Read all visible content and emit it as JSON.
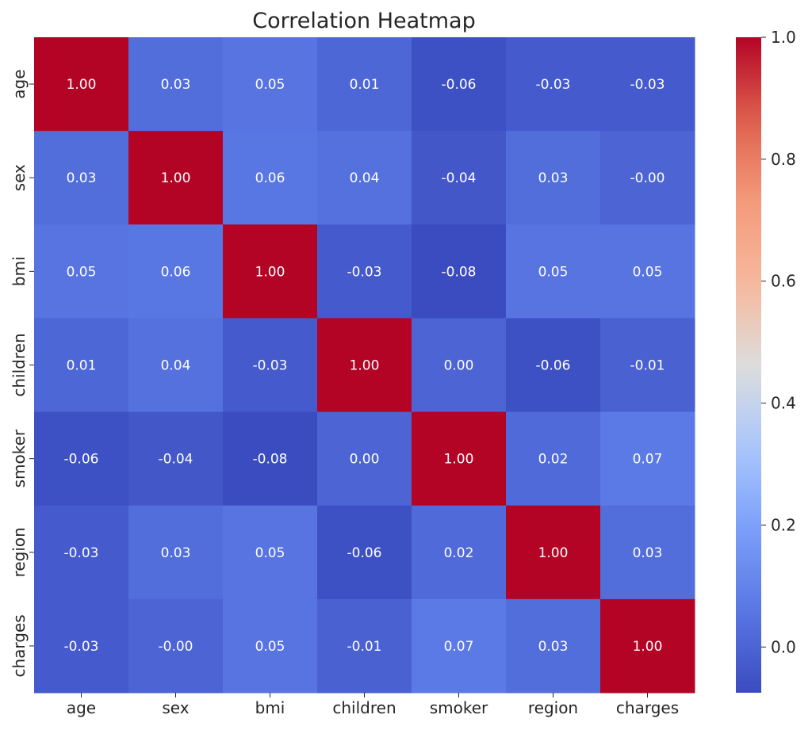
{
  "chart_data": {
    "type": "heatmap",
    "title": "Correlation Heatmap",
    "xlabel": "",
    "ylabel": "",
    "x_categories": [
      "age",
      "sex",
      "bmi",
      "children",
      "smoker",
      "region",
      "charges"
    ],
    "y_categories": [
      "age",
      "sex",
      "bmi",
      "children",
      "smoker",
      "region",
      "charges"
    ],
    "values": [
      [
        1.0,
        0.03,
        0.05,
        0.01,
        -0.06,
        -0.03,
        -0.03
      ],
      [
        0.03,
        1.0,
        0.06,
        0.04,
        -0.04,
        0.03,
        -0.0
      ],
      [
        0.05,
        0.06,
        1.0,
        -0.03,
        -0.08,
        0.05,
        0.05
      ],
      [
        0.01,
        0.04,
        -0.03,
        1.0,
        0.0,
        -0.06,
        -0.01
      ],
      [
        -0.06,
        -0.04,
        -0.08,
        0.0,
        1.0,
        0.02,
        0.07
      ],
      [
        -0.03,
        0.03,
        0.05,
        -0.06,
        0.02,
        1.0,
        0.03
      ],
      [
        -0.03,
        -0.0,
        0.05,
        -0.01,
        0.07,
        0.03,
        1.0
      ]
    ],
    "colormap": "coolwarm",
    "vmin": -0.075,
    "vmax": 1.0,
    "colorbar_ticks": [
      "0.0",
      "0.2",
      "0.4",
      "0.6",
      "0.8",
      "1.0"
    ],
    "colorbar_tick_values": [
      0.0,
      0.2,
      0.4,
      0.6,
      0.8,
      1.0
    ],
    "annotation_format": "2 decimals"
  }
}
